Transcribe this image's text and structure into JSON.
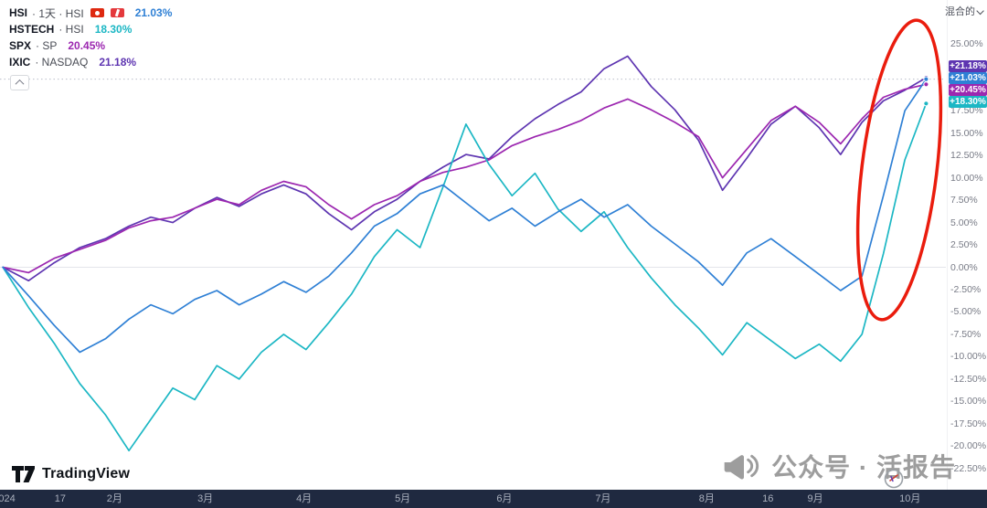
{
  "toolbar": {
    "mixed_label": "混合的"
  },
  "legend": {
    "rows": [
      {
        "symbol": "HSI",
        "detail": "· 1天 · HSI",
        "value": "21.03%",
        "series": "hsi",
        "flags": true
      },
      {
        "symbol": "HSTECH",
        "detail": "· HSI",
        "value": "18.30%",
        "series": "hstech",
        "flags": false
      },
      {
        "symbol": "SPX",
        "detail": "· SP",
        "value": "20.45%",
        "series": "spx",
        "flags": false
      },
      {
        "symbol": "IXIC",
        "detail": "· NASDAQ",
        "value": "21.18%",
        "series": "ixic",
        "flags": false
      }
    ]
  },
  "colors": {
    "hsi": "#2f80d5",
    "hstech": "#1cb7c4",
    "spx": "#9c27b0",
    "ixic": "#5e35b1",
    "annotation": "#ea1c0d",
    "axis_text": "#787b86",
    "footer_bg": "#1f2940"
  },
  "chart_data": {
    "type": "line",
    "unit": "percent-change",
    "x_domain": "Jan 2024 to early Oct 2024, weekly points",
    "y_axis": {
      "min": -22.5,
      "max": 25,
      "step": 2.5,
      "tick_labels": [
        "25.00%",
        "22.50%",
        "20.00%",
        "17.50%",
        "15.00%",
        "12.50%",
        "10.00%",
        "7.50%",
        "5.00%",
        "2.50%",
        "0.00%",
        "-2.50%",
        "-5.00%",
        "-7.50%",
        "-10.00%",
        "-12.50%",
        "-15.00%",
        "-17.50%",
        "-20.00%",
        "-22.50%"
      ]
    },
    "zero_line_value": 0,
    "dotted_line_value": 21.03,
    "week_anchors": [
      0,
      4.43,
      8.57,
      13,
      17.29,
      21.71,
      26,
      30.43,
      34.86,
      39.29,
      41
    ],
    "t_anchors": [
      0.003,
      0.118,
      0.21,
      0.31,
      0.409,
      0.512,
      0.612,
      0.718,
      0.827,
      0.923,
      0.96
    ],
    "series": [
      {
        "id": "ixic",
        "name": "IXIC · NASDAQ",
        "final_value": 21.18,
        "values": [
          0,
          -1.5,
          0.5,
          2.2,
          3.2,
          4.6,
          5.6,
          5.0,
          6.6,
          7.8,
          6.8,
          8.2,
          9.2,
          8.2,
          6.0,
          4.2,
          6.2,
          7.6,
          9.6,
          11.2,
          12.6,
          12.1,
          14.6,
          16.6,
          18.2,
          19.6,
          22.2,
          23.6,
          20.2,
          17.6,
          14.2,
          8.6,
          12.2,
          16.0,
          18.0,
          15.6,
          12.6,
          16.2,
          18.6,
          19.8,
          21.18
        ]
      },
      {
        "id": "spx",
        "name": "SPX · SP",
        "final_value": 20.45,
        "values": [
          0,
          -0.6,
          1.0,
          2.0,
          3.0,
          4.4,
          5.2,
          5.6,
          6.6,
          7.6,
          7.0,
          8.6,
          9.6,
          9.0,
          7.0,
          5.4,
          7.0,
          8.0,
          9.6,
          10.6,
          11.2,
          12.0,
          13.6,
          14.6,
          15.4,
          16.4,
          17.8,
          18.8,
          17.6,
          16.2,
          14.6,
          10.0,
          13.2,
          16.4,
          18.0,
          16.2,
          13.8,
          16.6,
          19.0,
          19.9,
          20.45
        ]
      },
      {
        "id": "hstech",
        "name": "HSTECH · HSI",
        "final_value": 18.3,
        "values": [
          0,
          -4.5,
          -8.5,
          -13.0,
          -16.5,
          -20.5,
          -17.0,
          -13.5,
          -14.8,
          -11.0,
          -12.5,
          -9.5,
          -7.5,
          -9.2,
          -6.2,
          -3.0,
          1.2,
          4.2,
          2.2,
          9.0,
          16.0,
          11.5,
          8.0,
          10.5,
          6.5,
          4.0,
          6.2,
          2.2,
          -1.2,
          -4.2,
          -6.8,
          -9.8,
          -6.2,
          -8.2,
          -10.2,
          -8.6,
          -10.5,
          -7.5,
          1.5,
          12.0,
          18.3
        ]
      },
      {
        "id": "hsi",
        "name": "HSI",
        "final_value": 21.03,
        "values": [
          0,
          -3.2,
          -6.5,
          -9.5,
          -8.0,
          -5.8,
          -4.2,
          -5.2,
          -3.6,
          -2.6,
          -4.2,
          -3.0,
          -1.6,
          -2.8,
          -1.0,
          1.6,
          4.6,
          6.0,
          8.2,
          9.2,
          7.2,
          5.2,
          6.6,
          4.6,
          6.2,
          7.6,
          5.6,
          7.0,
          4.6,
          2.6,
          0.6,
          -2.0,
          1.6,
          3.2,
          1.2,
          -0.8,
          -2.6,
          -1.0,
          8.0,
          17.5,
          21.03
        ]
      }
    ],
    "x_ticks": [
      {
        "label": "024",
        "t": 0.007
      },
      {
        "label": "17",
        "t": 0.061
      },
      {
        "label": "2月",
        "t": 0.116
      },
      {
        "label": "3月",
        "t": 0.208
      },
      {
        "label": "4月",
        "t": 0.308
      },
      {
        "label": "5月",
        "t": 0.408
      },
      {
        "label": "6月",
        "t": 0.511
      },
      {
        "label": "7月",
        "t": 0.611
      },
      {
        "label": "8月",
        "t": 0.716
      },
      {
        "label": "16",
        "t": 0.778
      },
      {
        "label": "9月",
        "t": 0.826
      },
      {
        "label": "10月",
        "t": 0.922
      }
    ]
  },
  "badges": [
    {
      "label": "+21.18%",
      "series": "ixic",
      "value": 21.18
    },
    {
      "label": "+21.03%",
      "series": "hsi",
      "value": 21.03
    },
    {
      "label": "+20.45%",
      "series": "spx",
      "value": 20.45
    },
    {
      "label": "+18.30%",
      "series": "hstech",
      "value": 18.3
    }
  ],
  "annotation": {
    "shape": "ellipse",
    "purpose": "red circle highlighting the late-September surge of HSI and HSTECH"
  },
  "watermark": {
    "text": "公众号 · 活报告"
  },
  "footer": {
    "brand": "TradingView"
  }
}
